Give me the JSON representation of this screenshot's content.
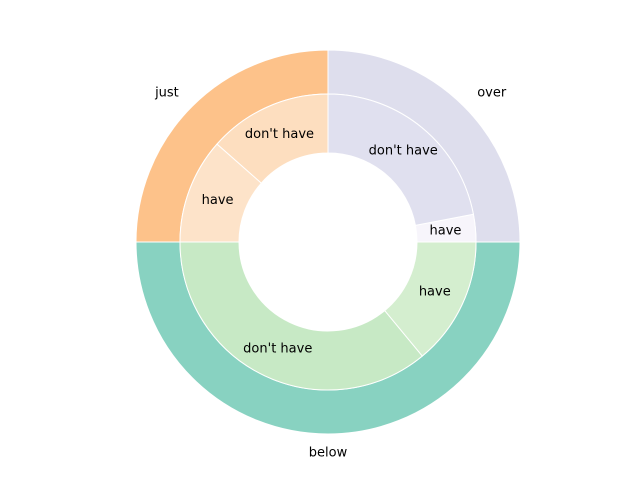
{
  "chart_data": {
    "type": "pie",
    "subtype": "nested-donut",
    "legend": "none",
    "outer": {
      "categories": [
        "over",
        "just",
        "below"
      ],
      "values": [
        25,
        25,
        50
      ],
      "colors": [
        "#dedeed",
        "#fdc28a",
        "#88d2c1"
      ]
    },
    "inner": {
      "groups": [
        "over",
        "over",
        "just",
        "just",
        "below",
        "below"
      ],
      "categories": [
        "have",
        "don't have",
        "don't have",
        "have",
        "don't have",
        "have"
      ],
      "values": [
        3,
        22,
        13.5,
        11.5,
        36,
        14
      ],
      "colors": [
        "#f7f5fb",
        "#e0e0ef",
        "#fddebf",
        "#fde3c9",
        "#c7e9c5",
        "#d4eecf"
      ]
    }
  }
}
